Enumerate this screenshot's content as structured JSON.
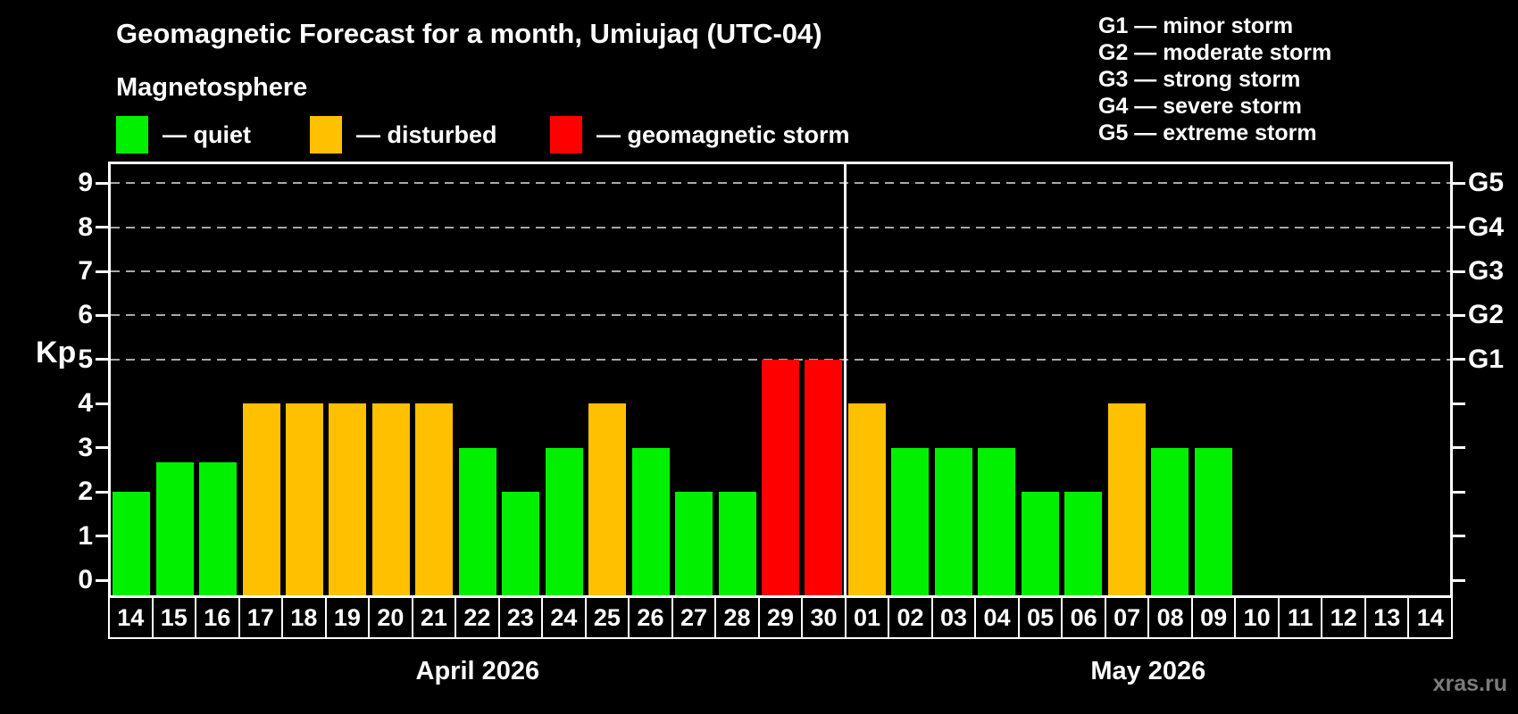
{
  "title": "Geomagnetic Forecast for a month, Umiujaq (UTC-04)",
  "subtitle": "Magnetosphere",
  "legend": [
    {
      "status": "quiet",
      "label": "— quiet"
    },
    {
      "status": "disturbed",
      "label": "— disturbed"
    },
    {
      "status": "storm",
      "label": "— geomagnetic storm"
    }
  ],
  "storm_scale": [
    "G1 — minor storm",
    "G2 — moderate storm",
    "G3 — strong storm",
    "G4 — severe storm",
    "G5 — extreme storm"
  ],
  "watermark": "xras.ru",
  "colors": {
    "quiet": "#00F000",
    "disturbed": "#FFC000",
    "storm": "#FF0000",
    "background": "#000000",
    "text": "#FFFFFF",
    "grid": "#A8A8A8",
    "watermark": "#7B7B7B"
  },
  "chart_data": {
    "type": "bar",
    "ylabel": "Kp",
    "ylim": [
      0,
      9
    ],
    "y_ticks": [
      0,
      1,
      2,
      3,
      4,
      5,
      6,
      7,
      8,
      9
    ],
    "gridlines_at": [
      5,
      6,
      7,
      8,
      9
    ],
    "grid_style": "dashed horizontal lines at geomagnetic storm levels G1–G5",
    "right_axis": [
      {
        "kp": 5,
        "label": "G1"
      },
      {
        "kp": 6,
        "label": "G2"
      },
      {
        "kp": 7,
        "label": "G3"
      },
      {
        "kp": 8,
        "label": "G4"
      },
      {
        "kp": 9,
        "label": "G5"
      }
    ],
    "months": [
      {
        "label": "April 2026",
        "days": [
          "14",
          "15",
          "16",
          "17",
          "18",
          "19",
          "20",
          "21",
          "22",
          "23",
          "24",
          "25",
          "26",
          "27",
          "28",
          "29",
          "30"
        ]
      },
      {
        "label": "May 2026",
        "days": [
          "01",
          "02",
          "03",
          "04",
          "05",
          "06",
          "07",
          "08",
          "09",
          "10",
          "11",
          "12",
          "13",
          "14"
        ]
      }
    ],
    "series": [
      {
        "month": "April 2026",
        "day": "14",
        "kp": 2,
        "status": "quiet"
      },
      {
        "month": "April 2026",
        "day": "15",
        "kp": 2.67,
        "status": "quiet"
      },
      {
        "month": "April 2026",
        "day": "16",
        "kp": 2.67,
        "status": "quiet"
      },
      {
        "month": "April 2026",
        "day": "17",
        "kp": 4,
        "status": "disturbed"
      },
      {
        "month": "April 2026",
        "day": "18",
        "kp": 4,
        "status": "disturbed"
      },
      {
        "month": "April 2026",
        "day": "19",
        "kp": 4,
        "status": "disturbed"
      },
      {
        "month": "April 2026",
        "day": "20",
        "kp": 4,
        "status": "disturbed"
      },
      {
        "month": "April 2026",
        "day": "21",
        "kp": 4,
        "status": "disturbed"
      },
      {
        "month": "April 2026",
        "day": "22",
        "kp": 3,
        "status": "quiet"
      },
      {
        "month": "April 2026",
        "day": "23",
        "kp": 2,
        "status": "quiet"
      },
      {
        "month": "April 2026",
        "day": "24",
        "kp": 3,
        "status": "quiet"
      },
      {
        "month": "April 2026",
        "day": "25",
        "kp": 4,
        "status": "disturbed"
      },
      {
        "month": "April 2026",
        "day": "26",
        "kp": 3,
        "status": "quiet"
      },
      {
        "month": "April 2026",
        "day": "27",
        "kp": 2,
        "status": "quiet"
      },
      {
        "month": "April 2026",
        "day": "28",
        "kp": 2,
        "status": "quiet"
      },
      {
        "month": "April 2026",
        "day": "29",
        "kp": 5,
        "status": "storm"
      },
      {
        "month": "April 2026",
        "day": "30",
        "kp": 5,
        "status": "storm"
      },
      {
        "month": "May 2026",
        "day": "01",
        "kp": 4,
        "status": "disturbed"
      },
      {
        "month": "May 2026",
        "day": "02",
        "kp": 3,
        "status": "quiet"
      },
      {
        "month": "May 2026",
        "day": "03",
        "kp": 3,
        "status": "quiet"
      },
      {
        "month": "May 2026",
        "day": "04",
        "kp": 3,
        "status": "quiet"
      },
      {
        "month": "May 2026",
        "day": "05",
        "kp": 2,
        "status": "quiet"
      },
      {
        "month": "May 2026",
        "day": "06",
        "kp": 2,
        "status": "quiet"
      },
      {
        "month": "May 2026",
        "day": "07",
        "kp": 4,
        "status": "disturbed"
      },
      {
        "month": "May 2026",
        "day": "08",
        "kp": 3,
        "status": "quiet"
      },
      {
        "month": "May 2026",
        "day": "09",
        "kp": 3,
        "status": "quiet"
      },
      {
        "month": "May 2026",
        "day": "10",
        "kp": null,
        "status": null
      },
      {
        "month": "May 2026",
        "day": "11",
        "kp": null,
        "status": null
      },
      {
        "month": "May 2026",
        "day": "12",
        "kp": null,
        "status": null
      },
      {
        "month": "May 2026",
        "day": "13",
        "kp": null,
        "status": null
      },
      {
        "month": "May 2026",
        "day": "14",
        "kp": null,
        "status": null
      }
    ]
  }
}
